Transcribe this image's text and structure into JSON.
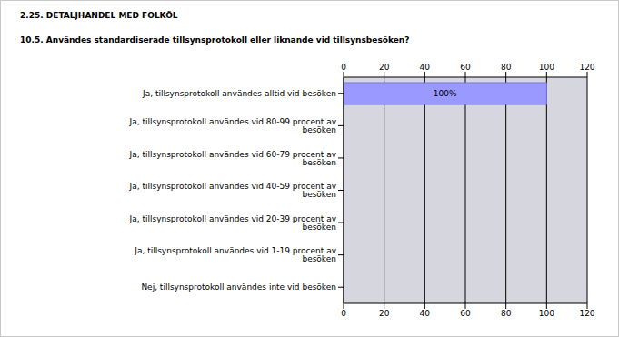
{
  "chart_data": {
    "type": "bar",
    "title": "2.25. DETALJHANDEL MED FOLKÖL",
    "subtitle": "10.5. Användes standardiserade tillsynsprotokoll eller liknande vid tillsynsbesöken?",
    "categories": [
      "Ja, tillsynsprotokoll användes alltid vid besöken",
      "Ja, tillsynsprotokoll användes vid 80-99 procent av besöken",
      "Ja, tillsynsprotokoll användes vid 60-79 procent av besöken",
      "Ja, tillsynsprotokoll användes vid 40-59 procent av besöken",
      "Ja, tillsynsprotokoll användes vid 20-39 procent av besöken",
      "Ja, tillsynsprotokoll användes vid 1-19 procent av besöken",
      "Nej, tillsynsprotokoll användes inte vid besöken"
    ],
    "values": [
      100,
      0,
      0,
      0,
      0,
      0,
      0
    ],
    "value_labels": [
      "100%",
      null,
      null,
      null,
      null,
      null,
      null
    ],
    "data_labels": true,
    "orientation": "horizontal",
    "color": "#9999ff",
    "xlim": [
      0,
      120
    ],
    "xticks": [
      0,
      20,
      40,
      60,
      80,
      100,
      120
    ],
    "grid": true
  }
}
